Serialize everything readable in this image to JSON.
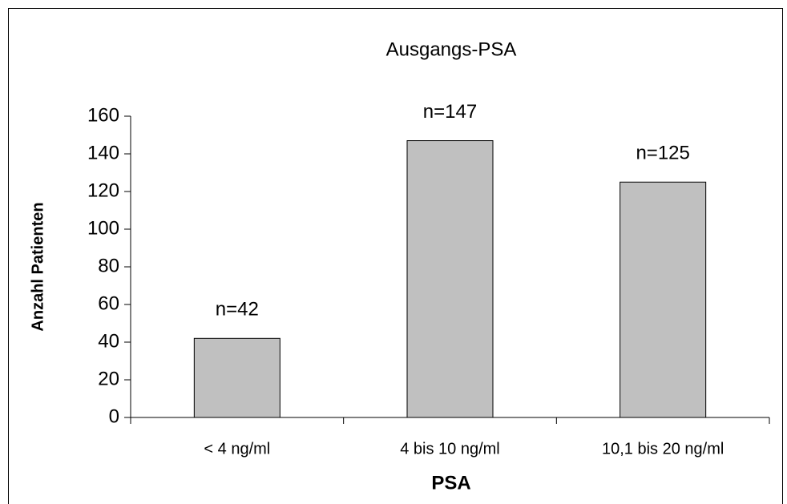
{
  "chart_data": {
    "type": "bar",
    "title": "Ausgangs-PSA",
    "x_label": "PSA",
    "y_label": "Anzahl Patienten",
    "categories": [
      "< 4 ng/ml",
      "4 bis 10 ng/ml",
      "10,1 bis 20 ng/ml"
    ],
    "values": [
      42,
      147,
      125
    ],
    "value_labels": [
      "n=42",
      "n=147",
      "n=125"
    ],
    "color": "#c0c0c0",
    "ylim": [
      0,
      160
    ],
    "yticks": [
      0,
      20,
      40,
      60,
      80,
      100,
      120,
      140,
      160
    ]
  }
}
